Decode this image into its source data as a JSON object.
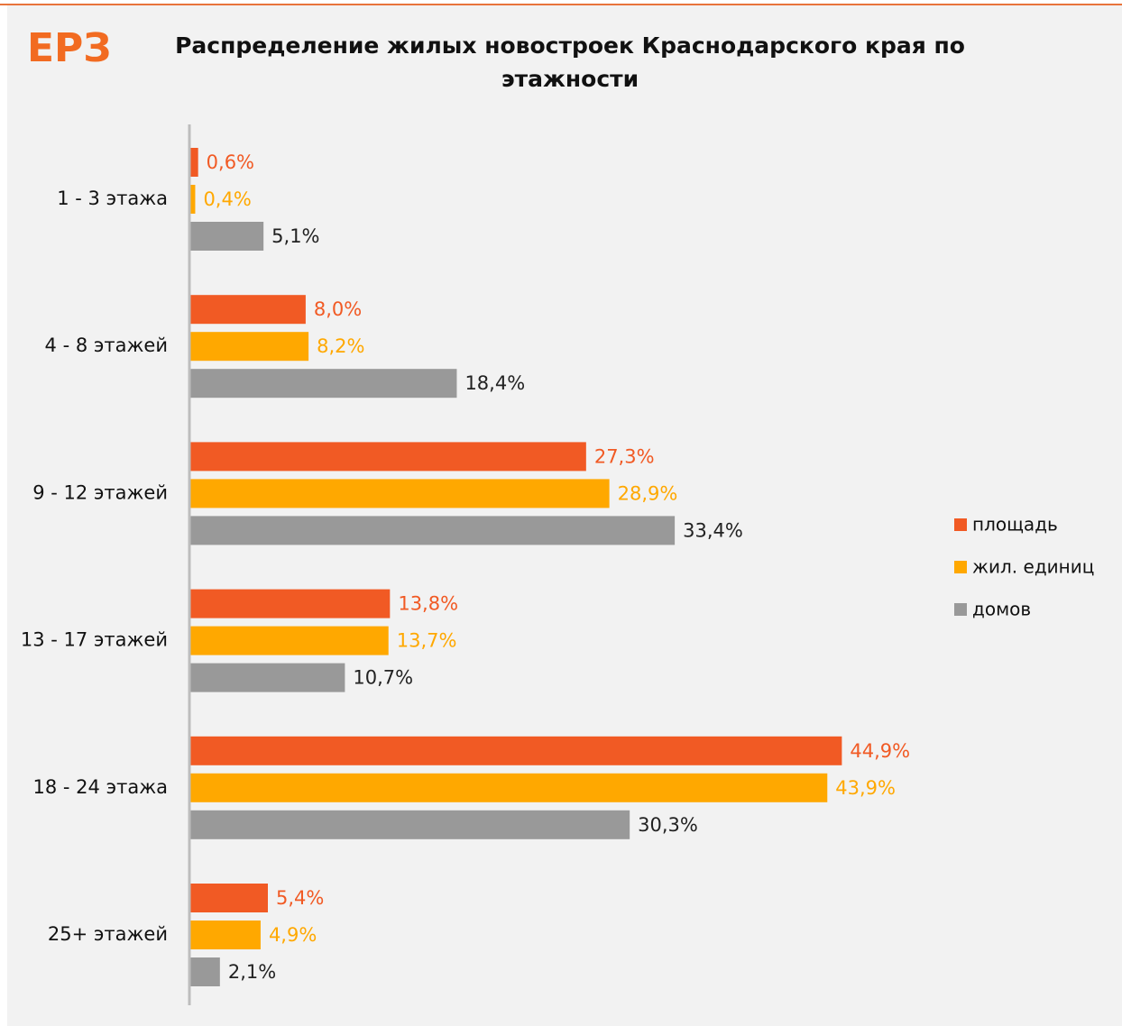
{
  "chart_data": {
    "type": "barh",
    "logo": "ЕРЗ",
    "title": [
      "Распределение  жилых новостроек Краснодарского края по",
      "этажности"
    ],
    "categories": [
      "1 - 3 этажа",
      "4 - 8 этажей",
      "9 - 12 этажей",
      "13 - 17 этажей",
      "18 - 24 этажа",
      "25+ этажей"
    ],
    "series": [
      {
        "name": "площадь",
        "color": "#f15a24",
        "label_color": "#f15a24",
        "values": [
          0.6,
          8.0,
          27.3,
          13.8,
          44.9,
          5.4
        ],
        "value_labels": [
          "0,6%",
          "8,0%",
          "27,3%",
          "13,8%",
          "44,9%",
          "5,4%"
        ]
      },
      {
        "name": "жил. единиц",
        "color": "#ffa800",
        "label_color": "#ffa800",
        "values": [
          0.4,
          8.2,
          28.9,
          13.7,
          43.9,
          4.9
        ],
        "value_labels": [
          "0,4%",
          "8,2%",
          "28,9%",
          "13,7%",
          "43,9%",
          "4,9%"
        ]
      },
      {
        "name": "домов",
        "color": "#999999",
        "label_color": "#222222",
        "values": [
          5.1,
          18.4,
          33.4,
          10.7,
          30.3,
          2.1
        ],
        "value_labels": [
          "5,1%",
          "18,4%",
          "33,4%",
          "10,7%",
          "30,3%",
          "2,1%"
        ]
      }
    ],
    "xlim": [
      0,
      45
    ],
    "legend": "right"
  }
}
